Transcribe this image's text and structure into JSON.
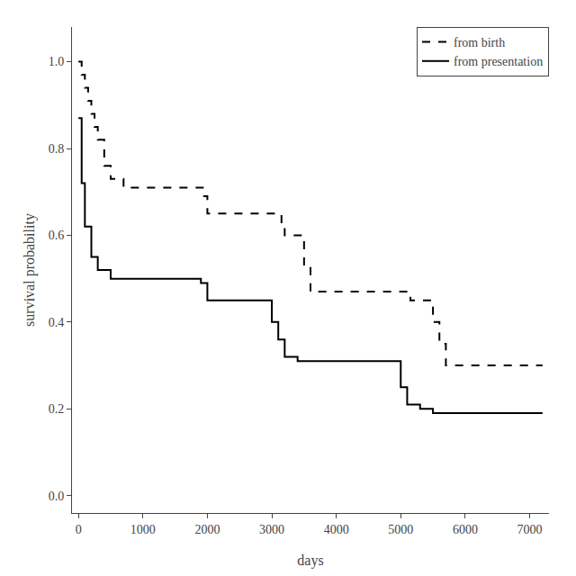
{
  "chart_data": {
    "type": "step",
    "xlabel": "days",
    "ylabel": "survival probability",
    "series": [
      {
        "name": "from birth",
        "color": "black",
        "line_style": "dashed",
        "x": [
          0,
          50,
          100,
          150,
          200,
          250,
          300,
          400,
          500,
          700,
          1900,
          1950,
          2000,
          3100,
          3150,
          3200,
          3500,
          3600,
          5100,
          5150,
          5500,
          5600,
          5700,
          7200
        ],
        "values": [
          1.0,
          0.97,
          0.94,
          0.91,
          0.88,
          0.85,
          0.82,
          0.76,
          0.73,
          0.71,
          0.71,
          0.69,
          0.65,
          0.65,
          0.63,
          0.6,
          0.53,
          0.47,
          0.47,
          0.45,
          0.4,
          0.35,
          0.3,
          0.3
        ]
      },
      {
        "name": "from presentation",
        "color": "black",
        "line_style": "solid",
        "x": [
          0,
          50,
          100,
          200,
          300,
          500,
          700,
          1800,
          1900,
          2000,
          2900,
          3000,
          3100,
          3200,
          3400,
          3500,
          4900,
          5000,
          5100,
          5200,
          5300,
          5500,
          7200
        ],
        "values": [
          0.87,
          0.72,
          0.62,
          0.55,
          0.52,
          0.5,
          0.5,
          0.5,
          0.49,
          0.45,
          0.45,
          0.4,
          0.36,
          0.32,
          0.31,
          0.31,
          0.31,
          0.25,
          0.21,
          0.21,
          0.2,
          0.19,
          0.19
        ]
      }
    ],
    "xlim": [
      -100,
      7300
    ],
    "ylim": [
      -0.04,
      1.08
    ],
    "xticks": [
      0,
      1000,
      2000,
      3000,
      4000,
      5000,
      6000,
      7000
    ],
    "yticks": [
      {
        "value": 0.0,
        "label": "0.0"
      },
      0.2,
      0.4,
      0.6,
      0.8,
      {
        "value": 1.0,
        "label": "1.0"
      }
    ],
    "legend": "upper right",
    "grid": false
  }
}
